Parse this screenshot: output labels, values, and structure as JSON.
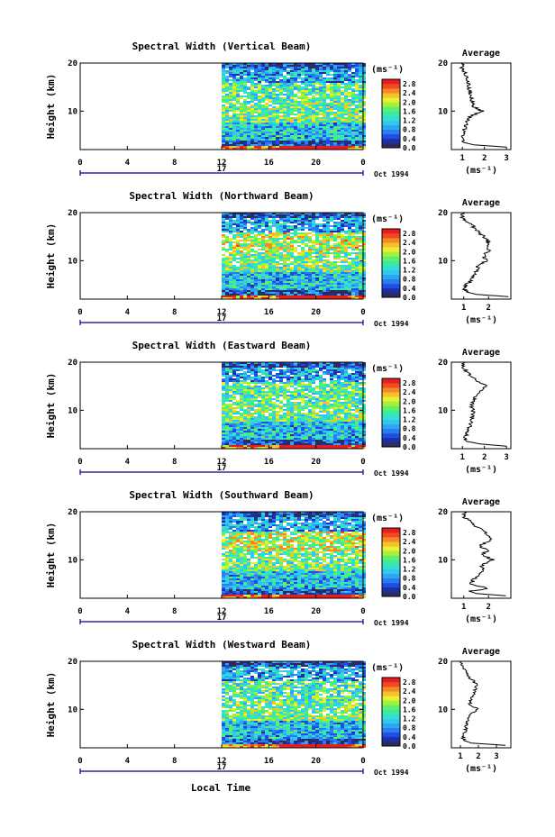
{
  "figure": {
    "xlabel": "Local Time",
    "date_label": "Oct 1994",
    "day_label": "17",
    "unit_label": "(ms⁻¹)",
    "average_title": "Average",
    "ylabel": "Height (km)"
  },
  "colors": {
    "palette": [
      "#2b2b5e",
      "#1b2fa8",
      "#1f4fe0",
      "#2a7df0",
      "#2fa6f2",
      "#30c8ee",
      "#33dfd0",
      "#3de8a0",
      "#5ef06a",
      "#a6f03c",
      "#e8f032",
      "#f5c22c",
      "#f48a26",
      "#ef4a22",
      "#e81e1e"
    ],
    "gap": "#ffffff"
  },
  "chart_data": [
    {
      "type": "heatmap",
      "title": "Spectral Width (Vertical Beam)",
      "ylabel": "Height (km)",
      "x_ticks": [
        "0",
        "4",
        "8",
        "12",
        "16",
        "20",
        "0"
      ],
      "y_ticks": [
        "20",
        "10"
      ],
      "xlim": [
        0,
        24
      ],
      "ylim": [
        2,
        20
      ],
      "data_start_hour": 12,
      "colorbar": {
        "label": "(ms⁻¹)",
        "ticks": [
          "2.8",
          "2.4",
          "2.0",
          "1.6",
          "1.2",
          "0.8",
          "0.4",
          "0.0"
        ],
        "range": [
          0,
          3.0
        ]
      },
      "profile": {
        "title": "Average",
        "xlabel": "(ms⁻¹)",
        "x_ticks": [
          "1",
          "2",
          "3"
        ],
        "xlim": [
          0.5,
          3.2
        ],
        "y_ticks": [
          "20",
          "10"
        ],
        "heights": [
          2.5,
          3,
          3.5,
          4,
          5,
          6,
          7,
          8,
          9,
          10,
          11,
          12,
          13,
          14,
          15,
          16,
          17,
          18,
          19,
          20
        ],
        "values": [
          3.0,
          1.5,
          1.05,
          1.0,
          1.05,
          1.1,
          1.15,
          1.2,
          1.4,
          1.9,
          1.5,
          1.45,
          1.4,
          1.35,
          1.3,
          1.25,
          1.2,
          1.1,
          0.95,
          1.05
        ]
      }
    },
    {
      "type": "heatmap",
      "title": "Spectral Width (Northward Beam)",
      "ylabel": "Height (km)",
      "x_ticks": [
        "0",
        "4",
        "8",
        "12",
        "16",
        "20",
        "0"
      ],
      "y_ticks": [
        "20",
        "10"
      ],
      "xlim": [
        0,
        24
      ],
      "ylim": [
        2,
        20
      ],
      "data_start_hour": 12,
      "colorbar": {
        "label": "(ms⁻¹)",
        "ticks": [
          "2.8",
          "2.4",
          "2.0",
          "1.6",
          "1.2",
          "0.8",
          "0.4",
          "0.0"
        ],
        "range": [
          0,
          3.0
        ]
      },
      "profile": {
        "title": "Average",
        "xlabel": "(ms⁻¹)",
        "x_ticks": [
          "1",
          "2"
        ],
        "xlim": [
          0.5,
          2.9
        ],
        "y_ticks": [
          "20",
          "10"
        ],
        "heights": [
          2.5,
          3,
          3.5,
          4,
          5,
          6,
          7,
          8,
          9,
          10,
          11,
          12,
          13,
          14,
          15,
          16,
          17,
          18,
          19,
          20
        ],
        "values": [
          2.8,
          1.5,
          1.1,
          1.05,
          1.1,
          1.3,
          1.4,
          1.5,
          1.6,
          1.9,
          1.8,
          2.0,
          1.9,
          2.0,
          1.8,
          1.6,
          1.4,
          1.2,
          0.9,
          1.0
        ]
      }
    },
    {
      "type": "heatmap",
      "title": "Spectral Width (Eastward Beam)",
      "ylabel": "Height (km)",
      "x_ticks": [
        "0",
        "4",
        "8",
        "12",
        "16",
        "20",
        "0"
      ],
      "y_ticks": [
        "20",
        "10"
      ],
      "xlim": [
        0,
        24
      ],
      "ylim": [
        2,
        20
      ],
      "data_start_hour": 12,
      "colorbar": {
        "label": "(ms⁻¹)",
        "ticks": [
          "2.8",
          "2.4",
          "2.0",
          "1.6",
          "1.2",
          "0.8",
          "0.4",
          "0.0"
        ],
        "range": [
          0,
          3.0
        ]
      },
      "profile": {
        "title": "Average",
        "xlabel": "(ms⁻¹)",
        "x_ticks": [
          "1",
          "2",
          "3"
        ],
        "xlim": [
          0.5,
          3.2
        ],
        "y_ticks": [
          "20",
          "10"
        ],
        "heights": [
          2.5,
          3,
          3.5,
          4,
          5,
          6,
          7,
          8,
          9,
          10,
          11,
          12,
          13,
          14,
          15,
          16,
          17,
          18,
          19,
          20
        ],
        "values": [
          3.0,
          1.8,
          1.2,
          1.1,
          1.2,
          1.3,
          1.35,
          1.4,
          1.45,
          1.5,
          1.4,
          1.5,
          1.6,
          1.8,
          2.1,
          1.7,
          1.4,
          1.2,
          1.0,
          1.1
        ]
      }
    },
    {
      "type": "heatmap",
      "title": "Spectral Width (Southward Beam)",
      "ylabel": "Height (km)",
      "x_ticks": [
        "0",
        "4",
        "8",
        "12",
        "16",
        "20",
        "0"
      ],
      "y_ticks": [
        "20",
        "10"
      ],
      "xlim": [
        0,
        24
      ],
      "ylim": [
        2,
        20
      ],
      "data_start_hour": 12,
      "colorbar": {
        "label": "(ms⁻¹)",
        "ticks": [
          "2.8",
          "2.4",
          "2.0",
          "1.6",
          "1.2",
          "0.8",
          "0.4",
          "0.0"
        ],
        "range": [
          0,
          3.0
        ]
      },
      "profile": {
        "title": "Average",
        "xlabel": "(ms⁻¹)",
        "x_ticks": [
          "1",
          "2"
        ],
        "xlim": [
          0.5,
          2.9
        ],
        "y_ticks": [
          "20",
          "10"
        ],
        "heights": [
          2.5,
          3,
          3.5,
          4,
          5,
          6,
          7,
          8,
          9,
          10,
          11,
          12,
          13,
          14,
          15,
          16,
          17,
          18,
          19,
          20
        ],
        "values": [
          2.7,
          1.5,
          1.2,
          2.0,
          1.3,
          1.4,
          1.6,
          1.8,
          1.7,
          2.2,
          1.7,
          2.0,
          1.6,
          2.1,
          2.0,
          1.8,
          1.5,
          1.3,
          1.0,
          1.0
        ]
      }
    },
    {
      "type": "heatmap",
      "title": "Spectral Width (Westward Beam)",
      "ylabel": "Height (km)",
      "x_ticks": [
        "0",
        "4",
        "8",
        "12",
        "16",
        "20",
        "0"
      ],
      "y_ticks": [
        "20",
        "10"
      ],
      "xlim": [
        0,
        24
      ],
      "ylim": [
        2,
        20
      ],
      "data_start_hour": 12,
      "colorbar": {
        "label": "(ms⁻¹)",
        "ticks": [
          "2.8",
          "2.4",
          "2.0",
          "1.6",
          "1.2",
          "0.8",
          "0.4",
          "0.0"
        ],
        "range": [
          0,
          3.0
        ]
      },
      "profile": {
        "title": "Average",
        "xlabel": "(ms⁻¹)",
        "x_ticks": [
          "1",
          "2",
          "3"
        ],
        "xlim": [
          0.5,
          3.8
        ],
        "y_ticks": [
          "20",
          "10"
        ],
        "heights": [
          2.5,
          3,
          3.5,
          4,
          5,
          6,
          7,
          8,
          9,
          10,
          11,
          12,
          13,
          14,
          15,
          16,
          17,
          18,
          19,
          20
        ],
        "values": [
          3.5,
          1.6,
          1.2,
          1.15,
          1.2,
          1.3,
          1.35,
          1.4,
          1.5,
          2.0,
          1.5,
          1.6,
          1.7,
          1.8,
          1.9,
          1.7,
          1.4,
          1.3,
          1.1,
          1.0
        ]
      }
    }
  ]
}
